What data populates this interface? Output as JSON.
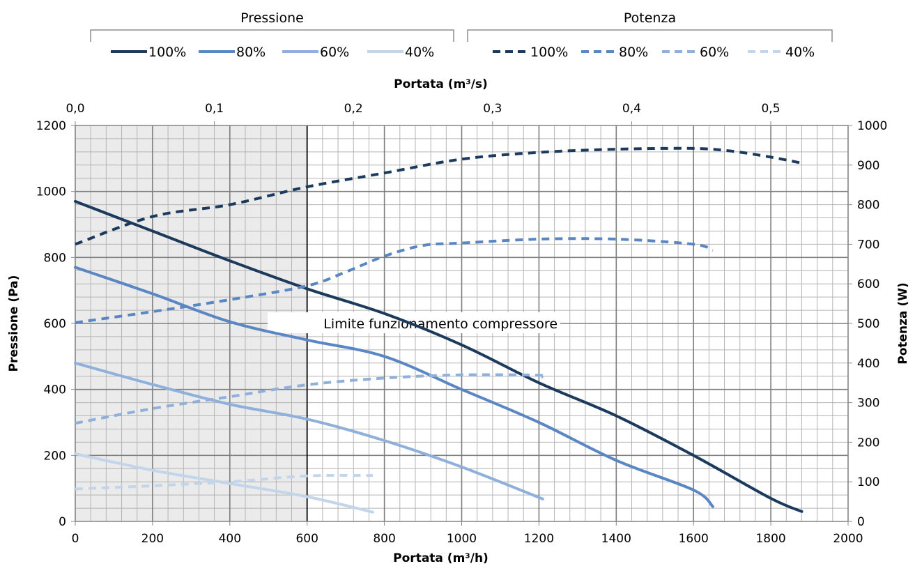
{
  "chart_data": {
    "type": "line",
    "legend": {
      "position": "top",
      "groups": [
        {
          "title": "Pressione",
          "entries": [
            "100%",
            "80%",
            "60%",
            "40%"
          ]
        },
        {
          "title": "Potenza",
          "entries": [
            "100%",
            "80%",
            "60%",
            "40%"
          ]
        }
      ]
    },
    "x_axis": {
      "label": "Portata (m³/h)",
      "range": [
        0,
        2000
      ],
      "ticks": [
        "0",
        "200",
        "400",
        "600",
        "800",
        "1000",
        "1200",
        "1400",
        "1600",
        "1800",
        "2000"
      ]
    },
    "x2_axis": {
      "label": "Portata (m³/s)",
      "range": [
        0,
        0.5556
      ],
      "ticks": [
        "0,0",
        "0,1",
        "0,2",
        "0,3",
        "0,4",
        "0,5"
      ]
    },
    "y_axis": {
      "label": "Pressione (Pa)",
      "range": [
        0,
        1200
      ],
      "ticks": [
        "0",
        "200",
        "400",
        "600",
        "800",
        "1000",
        "1200"
      ]
    },
    "y2_axis": {
      "label": "Potenza (W)",
      "range": [
        0,
        1000
      ],
      "ticks": [
        "0",
        "100",
        "200",
        "300",
        "400",
        "500",
        "600",
        "700",
        "800",
        "900",
        "1000"
      ]
    },
    "grid": true,
    "shaded_region": {
      "x_from": 0,
      "x_to": 600,
      "color": "#ebebeb"
    },
    "annotation": {
      "text": "Limite funzionamento compressore",
      "x": 1248,
      "y": 600
    },
    "colors": {
      "100%": "#1b3a5c",
      "80%": "#5a87c4",
      "60%": "#8fb0db",
      "40%": "#c3d5ea"
    },
    "series": [
      {
        "name": "100%",
        "group": "Pressione",
        "axis": "left",
        "style": "solid",
        "x": [
          0,
          200,
          400,
          600,
          800,
          1000,
          1200,
          1400,
          1600,
          1800,
          1880
        ],
        "y": [
          970,
          880,
          790,
          705,
          630,
          535,
          420,
          320,
          200,
          70,
          30
        ]
      },
      {
        "name": "80%",
        "group": "Pressione",
        "axis": "left",
        "style": "solid",
        "x": [
          0,
          200,
          400,
          600,
          800,
          1000,
          1200,
          1400,
          1600,
          1650
        ],
        "y": [
          770,
          690,
          605,
          550,
          500,
          400,
          300,
          185,
          95,
          45
        ]
      },
      {
        "name": "60%",
        "group": "Pressione",
        "axis": "left",
        "style": "solid",
        "x": [
          0,
          200,
          400,
          600,
          800,
          1000,
          1210
        ],
        "y": [
          480,
          415,
          355,
          310,
          245,
          165,
          68
        ]
      },
      {
        "name": "40%",
        "group": "Pressione",
        "axis": "left",
        "style": "solid",
        "x": [
          0,
          200,
          400,
          600,
          770
        ],
        "y": [
          205,
          155,
          115,
          75,
          28
        ]
      },
      {
        "name": "100%",
        "group": "Potenza",
        "axis": "right",
        "style": "dashed",
        "x": [
          0,
          200,
          400,
          600,
          800,
          1000,
          1200,
          1400,
          1600,
          1700,
          1800,
          1880
        ],
        "y": [
          700,
          770,
          800,
          845,
          880,
          915,
          932,
          940,
          942,
          935,
          920,
          905
        ]
      },
      {
        "name": "80%",
        "group": "Potenza",
        "axis": "right",
        "style": "dashed",
        "x": [
          0,
          200,
          400,
          600,
          700,
          800,
          900,
          1000,
          1200,
          1400,
          1600,
          1650
        ],
        "y": [
          502,
          530,
          560,
          595,
          630,
          670,
          697,
          703,
          713,
          713,
          700,
          685
        ]
      },
      {
        "name": "60%",
        "group": "Potenza",
        "axis": "right",
        "style": "dashed",
        "x": [
          0,
          200,
          400,
          600,
          800,
          1000,
          1200,
          1210
        ],
        "y": [
          248,
          285,
          315,
          345,
          362,
          370,
          369,
          363
        ]
      },
      {
        "name": "40%",
        "group": "Potenza",
        "axis": "right",
        "style": "dashed",
        "x": [
          0,
          200,
          400,
          600,
          770
        ],
        "y": [
          82,
          90,
          100,
          115,
          116
        ]
      }
    ]
  }
}
